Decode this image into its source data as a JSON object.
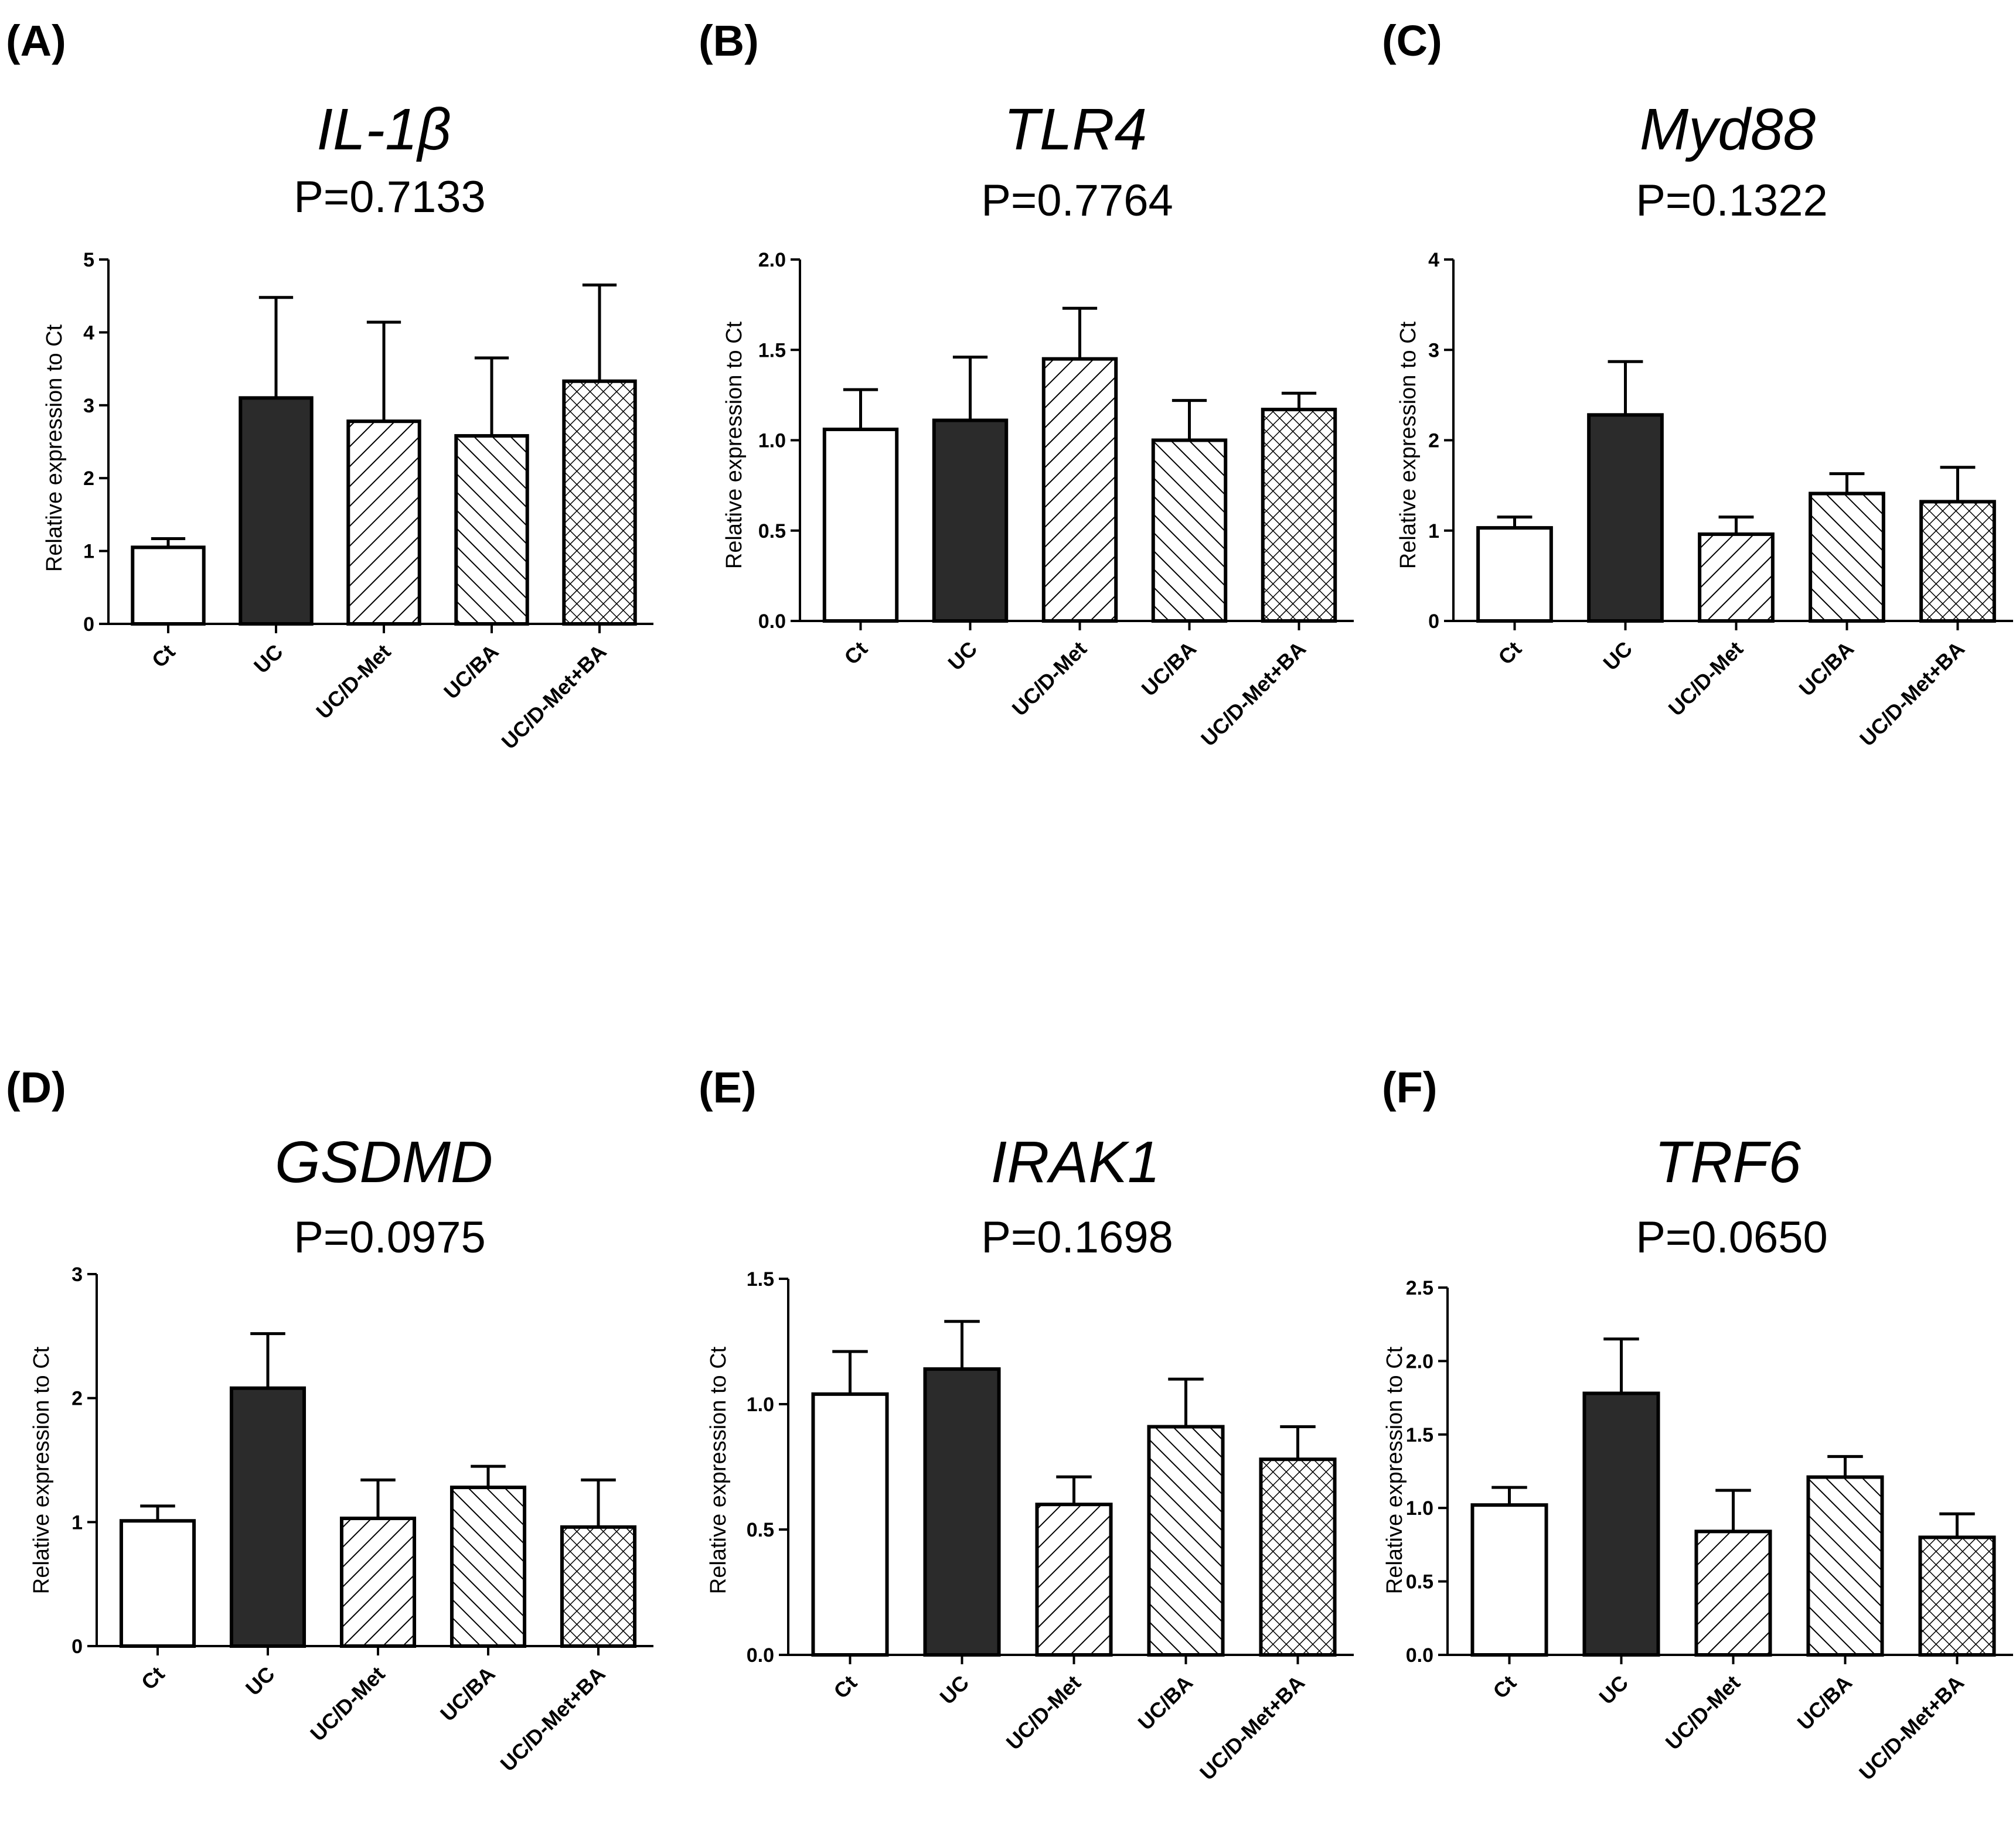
{
  "figure": {
    "categories": [
      "Ct",
      "UC",
      "UC/D-Met",
      "UC/BA",
      "UC/D-Met+BA"
    ],
    "bar_styles": [
      "white",
      "black",
      "hatch-forward",
      "hatch-back",
      "crosshatch"
    ],
    "colors": {
      "stroke": "#000000",
      "dark_fill": "#2b2b2b",
      "background": "#ffffff"
    }
  },
  "chart_data": [
    {
      "type": "bar",
      "panel": "(A)",
      "title": "IL-1β",
      "subtitle": "P=0.7133",
      "ylabel": "Relative expression to Ct",
      "ylim": [
        0,
        5
      ],
      "yticks": [
        "0",
        "1",
        "2",
        "3",
        "4",
        "5"
      ],
      "categories": [
        "Ct",
        "UC",
        "UC/D-Met",
        "UC/BA",
        "UC/D-Met+BA"
      ],
      "values": [
        1.05,
        3.1,
        2.78,
        2.58,
        3.33
      ],
      "errors": [
        0.12,
        1.38,
        1.36,
        1.07,
        1.32
      ]
    },
    {
      "type": "bar",
      "panel": "(B)",
      "title": "TLR4",
      "subtitle": "P=0.7764",
      "ylabel": "Relative expression to Ct",
      "ylim": [
        0,
        2
      ],
      "yticks": [
        "0.0",
        "0.5",
        "1.0",
        "1.5",
        "2.0"
      ],
      "categories": [
        "Ct",
        "UC",
        "UC/D-Met",
        "UC/BA",
        "UC/D-Met+BA"
      ],
      "values": [
        1.06,
        1.11,
        1.45,
        1.0,
        1.17
      ],
      "errors": [
        0.22,
        0.35,
        0.28,
        0.22,
        0.09
      ]
    },
    {
      "type": "bar",
      "panel": "(C)",
      "title": "Myd88",
      "subtitle": "P=0.1322",
      "ylabel": "Relative expression to Ct",
      "ylim": [
        0,
        4
      ],
      "yticks": [
        "0",
        "1",
        "2",
        "3",
        "4"
      ],
      "categories": [
        "Ct",
        "UC",
        "UC/D-Met",
        "UC/BA",
        "UC/D-Met+BA"
      ],
      "values": [
        1.03,
        2.28,
        0.96,
        1.41,
        1.32
      ],
      "errors": [
        0.12,
        0.59,
        0.19,
        0.22,
        0.38
      ]
    },
    {
      "type": "bar",
      "panel": "(D)",
      "title": "GSDMD",
      "subtitle": "P=0.0975",
      "ylabel": "Relative expression to Ct",
      "ylim": [
        0,
        3
      ],
      "yticks": [
        "0",
        "1",
        "2",
        "3"
      ],
      "categories": [
        "Ct",
        "UC",
        "UC/D-Met",
        "UC/BA",
        "UC/D-Met+BA"
      ],
      "values": [
        1.01,
        2.08,
        1.03,
        1.28,
        0.96
      ],
      "errors": [
        0.12,
        0.44,
        0.31,
        0.17,
        0.38
      ]
    },
    {
      "type": "bar",
      "panel": "(E)",
      "title": "IRAK1",
      "subtitle": "P=0.1698",
      "ylabel": "Relative expression to Ct",
      "ylim": [
        0,
        1.5
      ],
      "yticks": [
        "0.0",
        "0.5",
        "1.0",
        "1.5"
      ],
      "categories": [
        "Ct",
        "UC",
        "UC/D-Met",
        "UC/BA",
        "UC/D-Met+BA"
      ],
      "values": [
        1.04,
        1.14,
        0.6,
        0.91,
        0.78
      ],
      "errors": [
        0.17,
        0.19,
        0.11,
        0.19,
        0.13
      ]
    },
    {
      "type": "bar",
      "panel": "(F)",
      "title": "TRF6",
      "subtitle": "P=0.0650",
      "ylabel": "Relative expression to Ct",
      "ylim": [
        0,
        2.5
      ],
      "yticks": [
        "0.0",
        "0.5",
        "1.0",
        "1.5",
        "2.0",
        "2.5"
      ],
      "categories": [
        "Ct",
        "UC",
        "UC/D-Met",
        "UC/BA",
        "UC/D-Met+BA"
      ],
      "values": [
        1.02,
        1.78,
        0.84,
        1.21,
        0.8
      ],
      "errors": [
        0.12,
        0.37,
        0.28,
        0.14,
        0.16
      ]
    }
  ]
}
